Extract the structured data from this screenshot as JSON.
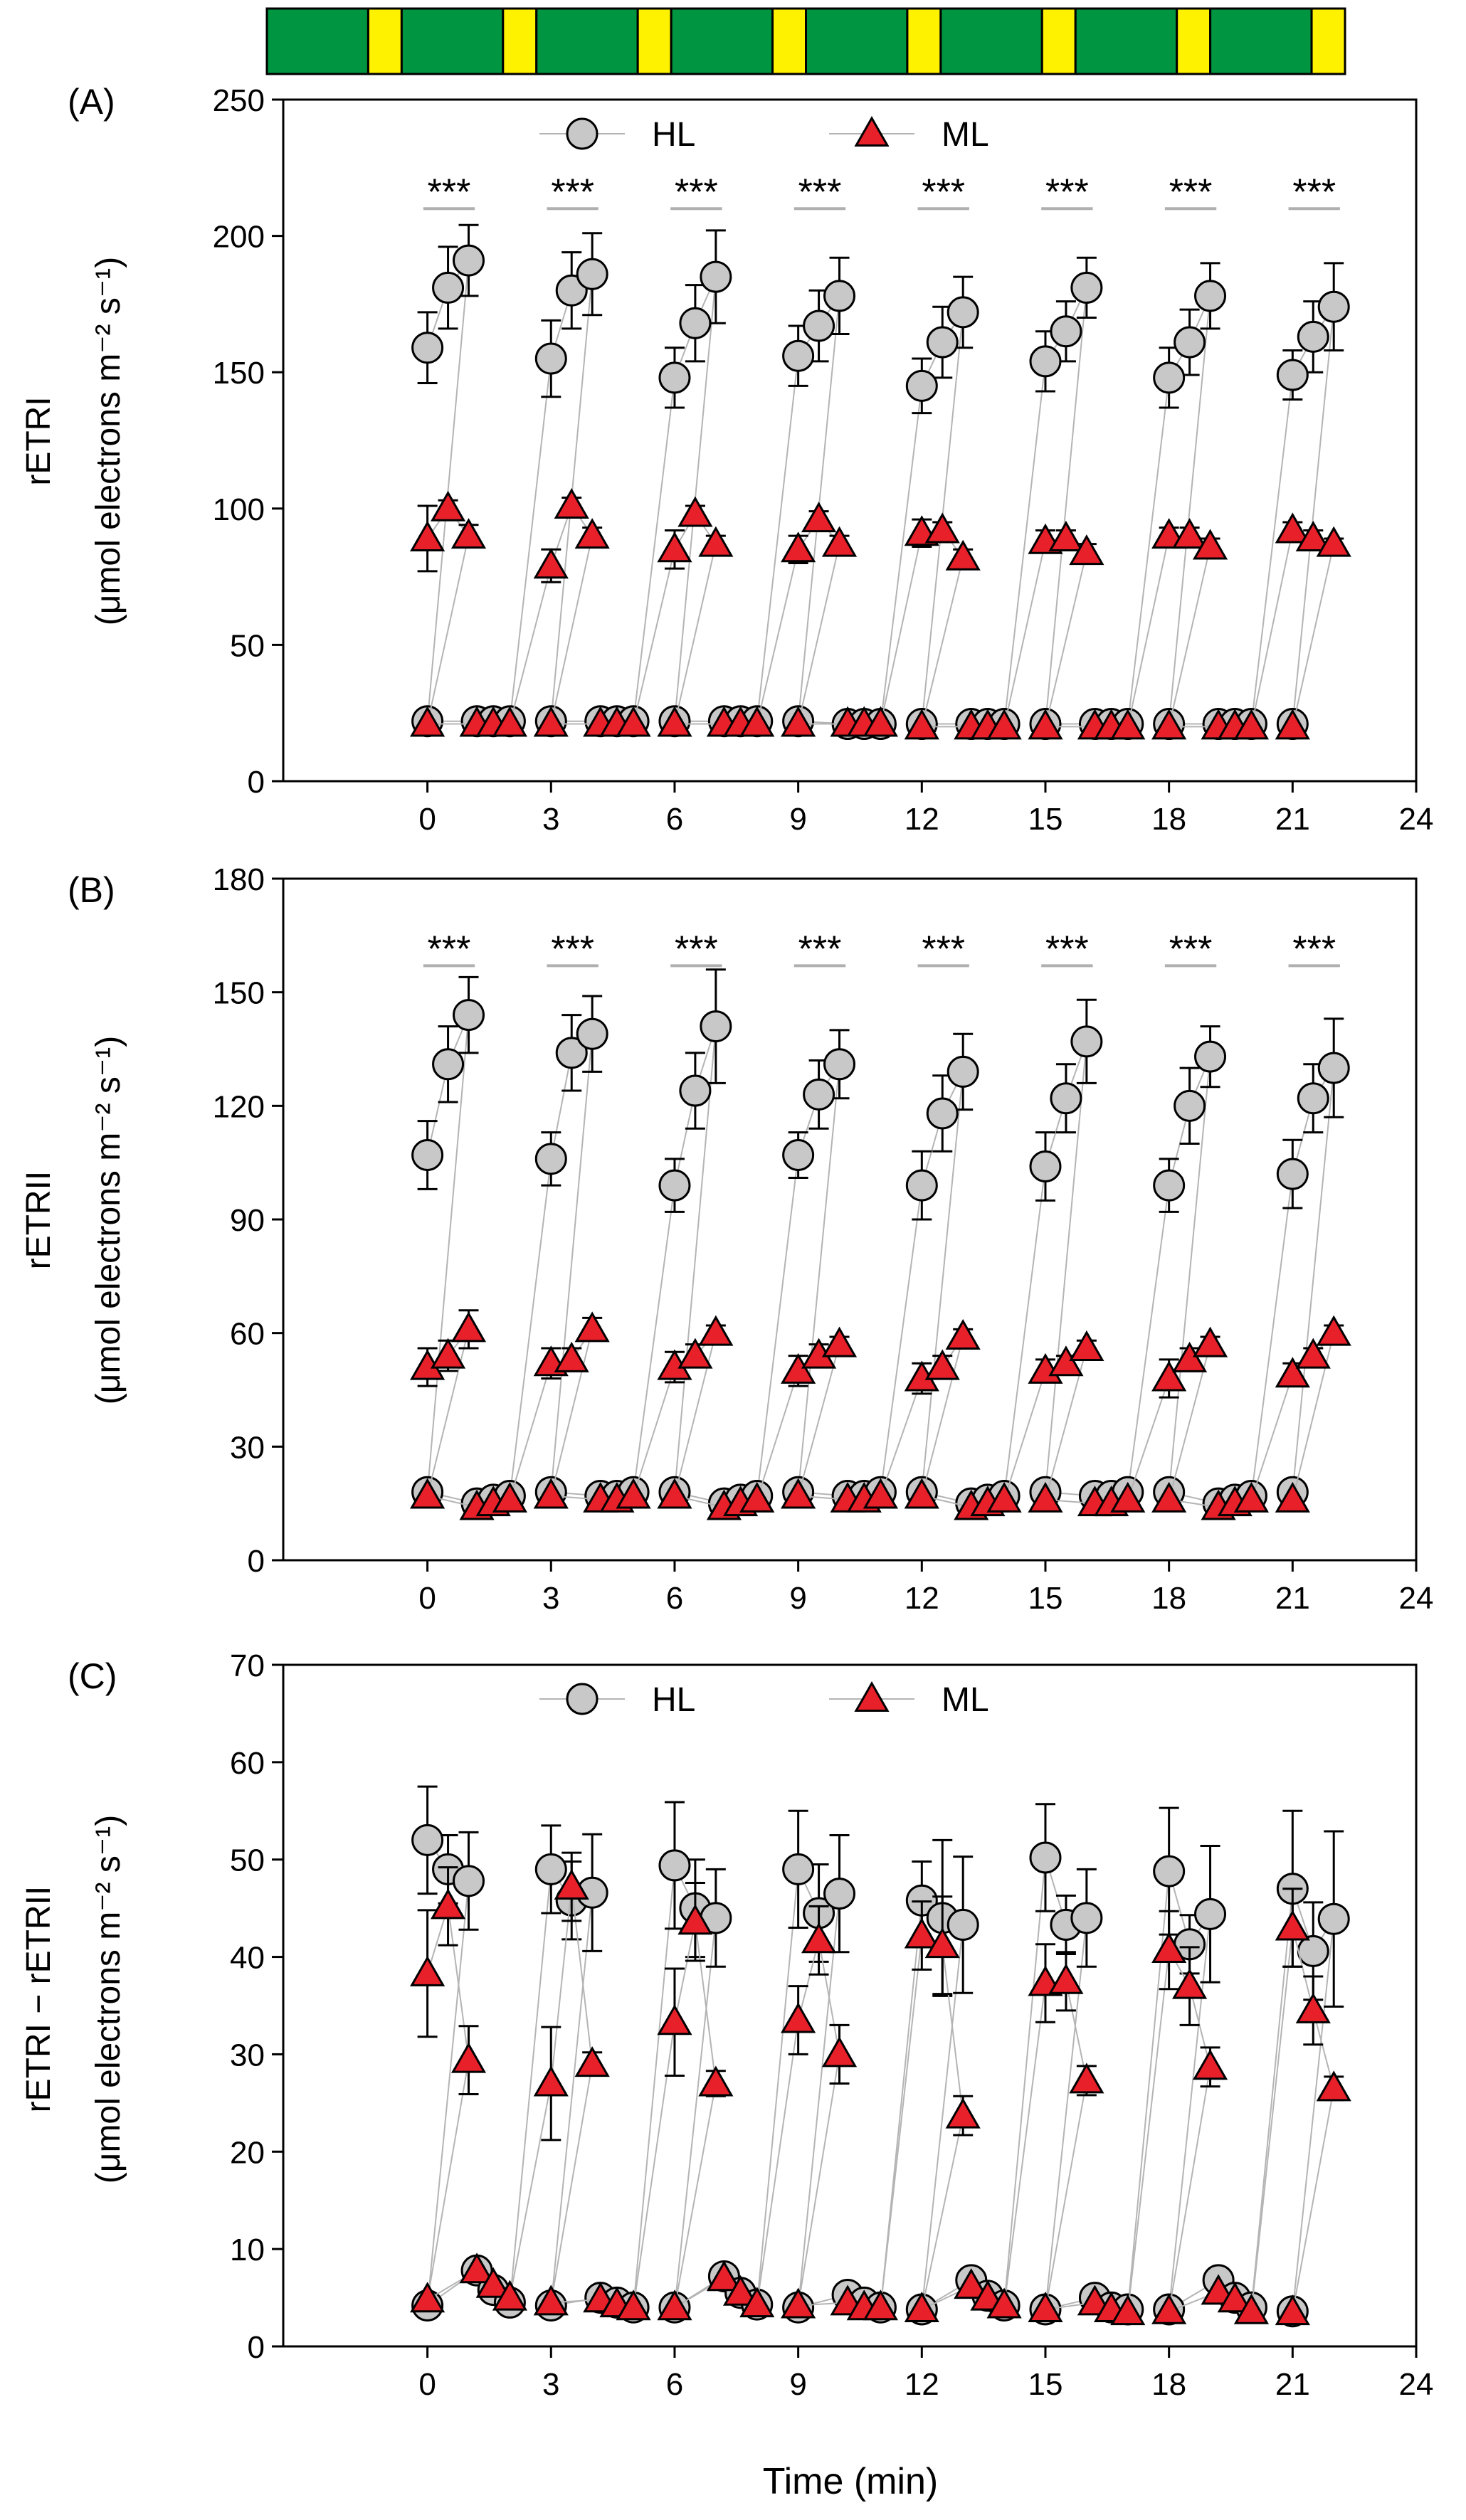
{
  "light_bar": {
    "segments": [
      "dark",
      "light",
      "dark",
      "light",
      "dark",
      "light",
      "dark",
      "light",
      "dark",
      "light",
      "dark",
      "light",
      "dark",
      "light",
      "dark",
      "light"
    ],
    "colors": {
      "dark": "#009540",
      "light": "#FFF200"
    }
  },
  "colors": {
    "hl_fill": "#c8c8c8",
    "ml_fill": "#e8202a",
    "connector": "#b4b4b4",
    "sig_line": "#b0b0b0"
  },
  "x_axis_title": "Time (min)",
  "chart_data": [
    {
      "type": "scatter",
      "panel_label": "(A)",
      "ylabel_line1": "rETRI",
      "ylabel_line2": "(μmol electrons m⁻² s⁻¹)",
      "xlim": [
        -3.5,
        24
      ],
      "ylim": [
        0,
        250
      ],
      "xticks": [
        0,
        3,
        6,
        9,
        12,
        15,
        18,
        21,
        24
      ],
      "yticks": [
        0,
        50,
        100,
        150,
        200,
        250
      ],
      "legend": {
        "visible": true,
        "placement": "top-center",
        "items": [
          "HL",
          "ML"
        ]
      },
      "significance": {
        "label": "***",
        "y": 210,
        "starts": [
          0,
          3,
          6,
          9,
          12,
          15,
          18,
          21
        ]
      },
      "series": [
        {
          "name": "HL",
          "marker": "circle",
          "x": [
            0,
            0.5,
            1,
            0,
            1.2,
            1.6,
            2,
            3,
            3.5,
            4,
            3,
            4.2,
            4.6,
            5,
            6,
            6.5,
            7,
            6,
            7.2,
            7.6,
            8,
            9,
            9.5,
            10,
            9,
            10.2,
            10.6,
            11,
            12,
            12.5,
            13,
            12,
            13.2,
            13.6,
            14,
            15,
            15.5,
            16,
            15,
            16.2,
            16.6,
            17,
            18,
            18.5,
            19,
            18,
            19.2,
            19.6,
            20,
            21,
            21.5,
            22,
            21
          ],
          "y": [
            159,
            181,
            191,
            22,
            22,
            22,
            22,
            155,
            180,
            186,
            22,
            22,
            22,
            22,
            148,
            168,
            185,
            22,
            22,
            22,
            22,
            156,
            167,
            178,
            22,
            21,
            21,
            21,
            145,
            161,
            172,
            21,
            21,
            21,
            21,
            154,
            165,
            181,
            21,
            21,
            21,
            21,
            148,
            161,
            178,
            21,
            21,
            21,
            21,
            149,
            163,
            174,
            21
          ],
          "err": [
            13,
            15,
            13,
            0,
            0,
            0,
            0,
            14,
            14,
            15,
            0,
            0,
            0,
            0,
            11,
            14,
            17,
            0,
            0,
            0,
            0,
            11,
            13,
            14,
            0,
            0,
            0,
            0,
            10,
            13,
            13,
            0,
            0,
            0,
            0,
            11,
            11,
            11,
            0,
            0,
            0,
            0,
            11,
            12,
            12,
            0,
            0,
            0,
            0,
            9,
            13,
            16,
            0
          ]
        },
        {
          "name": "ML",
          "marker": "triangle",
          "x": [
            0,
            0.5,
            1,
            0,
            1.2,
            1.6,
            2,
            3,
            3.5,
            4,
            3,
            4.2,
            4.6,
            5,
            6,
            6.5,
            7,
            6,
            7.2,
            7.6,
            8,
            9,
            9.5,
            10,
            9,
            10.2,
            10.6,
            11,
            12,
            12.5,
            13,
            12,
            13.2,
            13.6,
            14,
            15,
            15.5,
            16,
            15,
            16.2,
            16.6,
            17,
            18,
            18.5,
            19,
            18,
            19.2,
            19.6,
            20,
            21,
            21.5,
            22,
            21
          ],
          "y": [
            89,
            100,
            90,
            21,
            21,
            21,
            21,
            79,
            101,
            90,
            21,
            21,
            21,
            21,
            85,
            98,
            87,
            21,
            21,
            21,
            21,
            85,
            96,
            87,
            21,
            21,
            21,
            21,
            91,
            92,
            82,
            20,
            20,
            20,
            20,
            88,
            89,
            84,
            20,
            20,
            20,
            20,
            90,
            90,
            86,
            20,
            20,
            20,
            20,
            92,
            89,
            87,
            20
          ],
          "err": [
            12,
            3,
            4,
            0,
            0,
            0,
            0,
            6,
            3,
            3,
            0,
            0,
            0,
            0,
            7,
            3,
            3,
            0,
            0,
            0,
            0,
            5,
            3,
            3,
            0,
            0,
            0,
            0,
            5,
            3,
            3,
            0,
            0,
            0,
            0,
            4,
            3,
            3,
            0,
            0,
            0,
            0,
            3,
            3,
            3,
            0,
            0,
            0,
            0,
            3,
            3,
            2,
            0
          ]
        }
      ]
    },
    {
      "type": "scatter",
      "panel_label": "(B)",
      "ylabel_line1": "rETRII",
      "ylabel_line2": "(μmol electrons m⁻² s⁻¹)",
      "xlim": [
        -3.5,
        24
      ],
      "ylim": [
        0,
        180
      ],
      "xticks": [
        0,
        3,
        6,
        9,
        12,
        15,
        18,
        21,
        24
      ],
      "yticks": [
        0,
        30,
        60,
        90,
        120,
        150,
        180
      ],
      "legend": {
        "visible": false
      },
      "significance": {
        "label": "***",
        "y": 157,
        "starts": [
          0,
          3,
          6,
          9,
          12,
          15,
          18,
          21
        ]
      },
      "series": [
        {
          "name": "HL",
          "marker": "circle",
          "x": [
            0,
            0.5,
            1,
            0,
            1.2,
            1.6,
            2,
            3,
            3.5,
            4,
            3,
            4.2,
            4.6,
            5,
            6,
            6.5,
            7,
            6,
            7.2,
            7.6,
            8,
            9,
            9.5,
            10,
            9,
            10.2,
            10.6,
            11,
            12,
            12.5,
            13,
            12,
            13.2,
            13.6,
            14,
            15,
            15.5,
            16,
            15,
            16.2,
            16.6,
            17,
            18,
            18.5,
            19,
            18,
            19.2,
            19.6,
            20,
            21,
            21.5,
            22,
            21
          ],
          "y": [
            107,
            131,
            144,
            18,
            15,
            16,
            17,
            106,
            134,
            139,
            18,
            17,
            17,
            18,
            99,
            124,
            141,
            18,
            15,
            16,
            17,
            107,
            123,
            131,
            18,
            17,
            17,
            18,
            99,
            118,
            129,
            18,
            15,
            16,
            17,
            104,
            122,
            137,
            18,
            17,
            17,
            18,
            99,
            120,
            133,
            18,
            15,
            16,
            17,
            102,
            122,
            130,
            18
          ],
          "err": [
            9,
            10,
            10,
            0,
            0,
            0,
            0,
            7,
            10,
            10,
            0,
            0,
            0,
            0,
            7,
            10,
            15,
            0,
            0,
            0,
            0,
            6,
            9,
            9,
            0,
            0,
            0,
            0,
            9,
            10,
            10,
            0,
            0,
            0,
            0,
            9,
            9,
            11,
            0,
            0,
            0,
            0,
            7,
            10,
            8,
            0,
            0,
            0,
            0,
            9,
            9,
            13,
            0
          ]
        },
        {
          "name": "ML",
          "marker": "triangle",
          "x": [
            0,
            0.5,
            1,
            0,
            1.2,
            1.6,
            2,
            3,
            3.5,
            4,
            3,
            4.2,
            4.6,
            5,
            6,
            6.5,
            7,
            6,
            7.2,
            7.6,
            8,
            9,
            9.5,
            10,
            9,
            10.2,
            10.6,
            11,
            12,
            12.5,
            13,
            12,
            13.2,
            13.6,
            14,
            15,
            15.5,
            16,
            15,
            16.2,
            16.6,
            17,
            18,
            18.5,
            19,
            18,
            19.2,
            19.6,
            20,
            21,
            21.5,
            22,
            21
          ],
          "y": [
            51,
            54,
            61,
            17,
            14,
            15,
            16,
            52,
            53,
            61,
            17,
            16,
            16,
            17,
            51,
            54,
            60,
            17,
            14,
            15,
            16,
            50,
            54,
            57,
            17,
            16,
            16,
            17,
            48,
            51,
            59,
            17,
            14,
            15,
            16,
            50,
            52,
            56,
            16,
            15,
            15,
            16,
            48,
            53,
            57,
            16,
            14,
            15,
            16,
            49,
            54,
            60,
            16
          ],
          "err": [
            5,
            4,
            5,
            0,
            0,
            0,
            0,
            4,
            3,
            3,
            0,
            0,
            0,
            0,
            4,
            3,
            2,
            0,
            0,
            0,
            0,
            4,
            3,
            2,
            0,
            0,
            0,
            0,
            4,
            3,
            2,
            0,
            0,
            0,
            0,
            3,
            2,
            2,
            0,
            0,
            0,
            0,
            5,
            3,
            2,
            0,
            0,
            0,
            0,
            3,
            2,
            2,
            0
          ]
        }
      ]
    },
    {
      "type": "scatter",
      "panel_label": "(C)",
      "ylabel_line1": "rETRI − rETRII",
      "ylabel_line2": "(μmol electrons m⁻² s⁻¹)",
      "xlim": [
        -3.5,
        24
      ],
      "ylim": [
        0,
        70
      ],
      "xticks": [
        0,
        3,
        6,
        9,
        12,
        15,
        18,
        21,
        24
      ],
      "yticks": [
        0,
        10,
        20,
        30,
        40,
        50,
        60,
        70
      ],
      "legend": {
        "visible": true,
        "placement": "top-center",
        "items": [
          "HL",
          "ML"
        ]
      },
      "significance": null,
      "series": [
        {
          "name": "HL",
          "marker": "circle",
          "x": [
            0,
            0.5,
            1,
            0,
            1.2,
            1.6,
            2,
            3,
            3.5,
            4,
            3,
            4.2,
            4.6,
            5,
            6,
            6.5,
            7,
            6,
            7.2,
            7.6,
            8,
            9,
            9.5,
            10,
            9,
            10.2,
            10.6,
            11,
            12,
            12.5,
            13,
            12,
            13.2,
            13.6,
            14,
            15,
            15.5,
            16,
            15,
            16.2,
            16.6,
            17,
            18,
            18.5,
            19,
            18,
            19.2,
            19.6,
            20,
            21,
            21.5,
            22,
            21
          ],
          "y": [
            52,
            49,
            47.8,
            4.2,
            7.8,
            5.8,
            4.5,
            49,
            45.8,
            46.6,
            4.2,
            5,
            4.5,
            4,
            49.4,
            45,
            44,
            4,
            7.2,
            5.5,
            4.3,
            49,
            44.5,
            46.5,
            4,
            5.3,
            4.5,
            4,
            45.8,
            44,
            43.3,
            3.8,
            6.8,
            5.2,
            4.2,
            50.2,
            43.3,
            44,
            3.8,
            5,
            4,
            3.8,
            48.8,
            41.3,
            44.4,
            3.8,
            6.8,
            5,
            4,
            47,
            40.6,
            43.9,
            3.6
          ],
          "err": [
            5.5,
            3.5,
            5,
            0,
            0,
            0,
            0,
            4.5,
            4,
            6,
            0,
            0,
            0,
            0,
            6.5,
            5,
            5,
            0,
            0,
            0,
            0,
            6,
            5,
            6,
            0,
            0,
            0,
            0,
            4,
            8,
            7,
            0,
            0,
            0,
            0,
            5.5,
            3,
            5,
            0,
            0,
            0,
            0,
            6.5,
            3,
            7,
            0,
            0,
            0,
            0,
            8,
            5,
            9,
            0
          ]
        },
        {
          "name": "ML",
          "marker": "triangle",
          "x": [
            0,
            0.5,
            1,
            0,
            1.2,
            1.6,
            2,
            3,
            3.5,
            4,
            3,
            4.2,
            4.6,
            5,
            6,
            6.5,
            7,
            6,
            7.2,
            7.6,
            8,
            9,
            9.5,
            10,
            9,
            10.2,
            10.6,
            11,
            12,
            12.5,
            13,
            12,
            13.2,
            13.6,
            14,
            15,
            15.5,
            16,
            15,
            16.2,
            16.6,
            17,
            18,
            18.5,
            19,
            18,
            19.2,
            19.6,
            20,
            21,
            21.5,
            22,
            21
          ],
          "y": [
            38.3,
            45.2,
            29.4,
            4.8,
            7.8,
            6.3,
            5,
            27,
            47.2,
            29,
            4.5,
            4.8,
            4.3,
            4,
            33.3,
            43.6,
            27,
            4,
            7,
            5.5,
            4.3,
            33.5,
            41.7,
            30,
            4.2,
            4.5,
            4,
            4,
            42.2,
            41.2,
            23.7,
            3.8,
            6.2,
            5,
            4.2,
            37.3,
            37.5,
            27.3,
            3.8,
            4.5,
            3.8,
            3.5,
            40.7,
            37,
            28.7,
            3.6,
            5.6,
            4.8,
            3.6,
            43,
            34.5,
            26.5,
            3.5
          ],
          "err": [
            6.5,
            4,
            3.5,
            0,
            0,
            0,
            0,
            5.8,
            3.5,
            1.2,
            0,
            0,
            0,
            0,
            5.5,
            4,
            1.3,
            0,
            0,
            0,
            0,
            3.5,
            3.5,
            3,
            0,
            0,
            0,
            0,
            3.5,
            5,
            2,
            0,
            0,
            0,
            0,
            4,
            3,
            1.5,
            0,
            0,
            0,
            0,
            4,
            4,
            2,
            0,
            0,
            0,
            0,
            4,
            3.5,
            1.2,
            0
          ]
        }
      ]
    }
  ]
}
